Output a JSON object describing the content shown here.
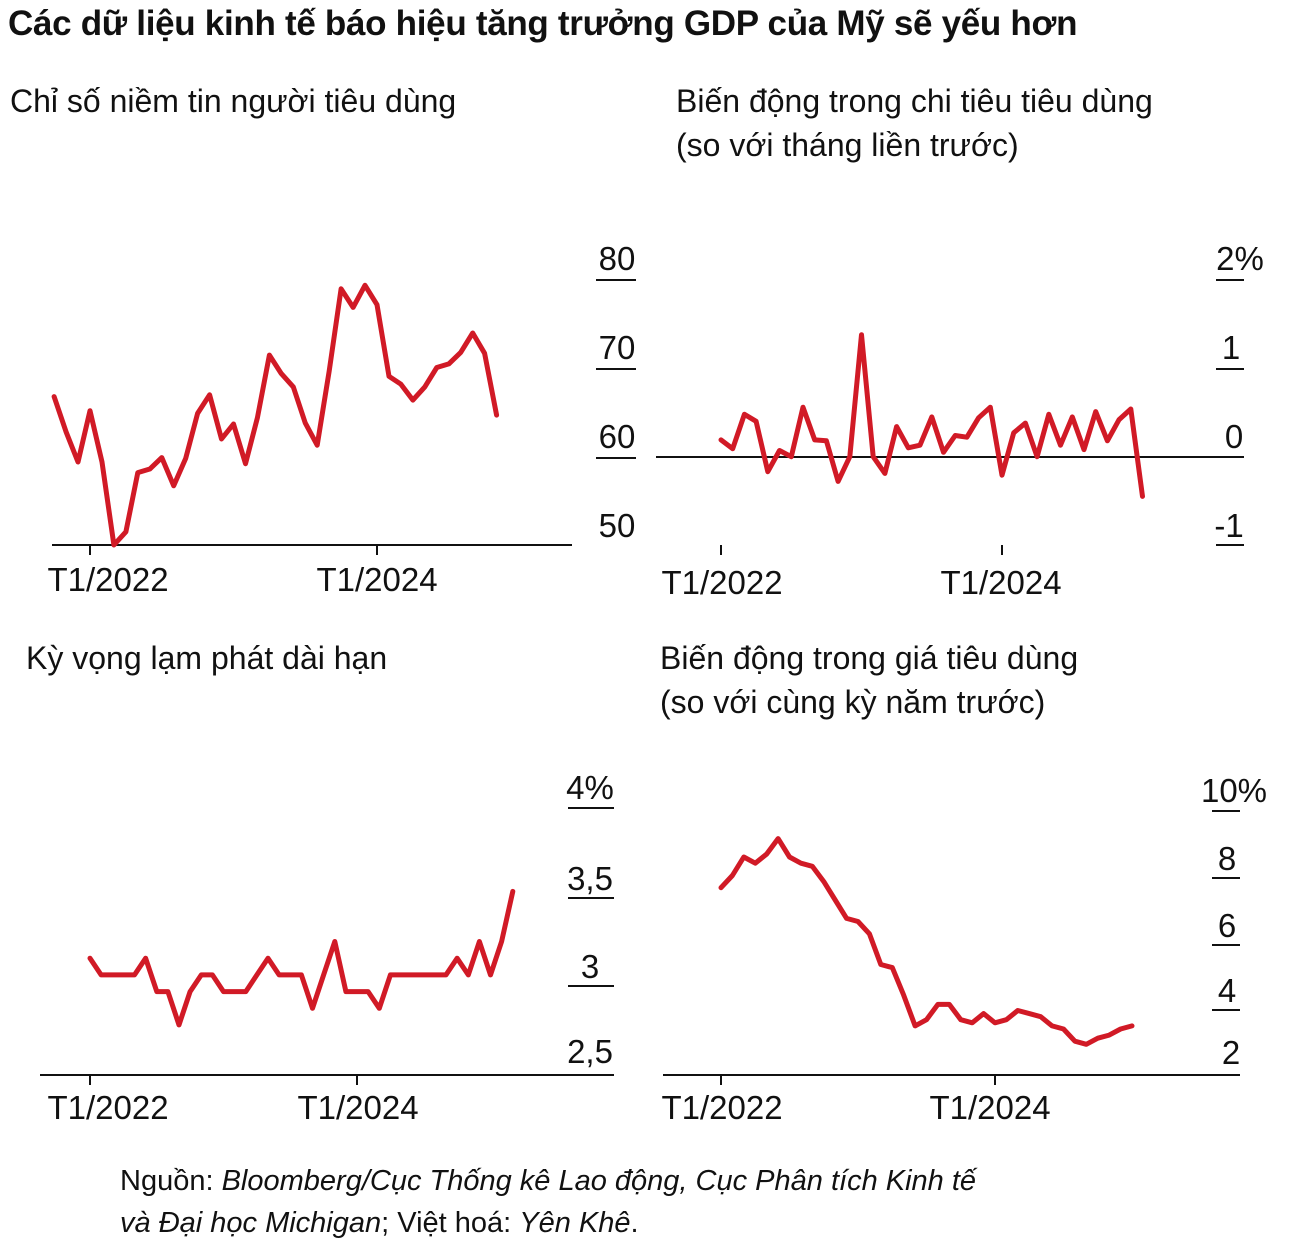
{
  "title": "Các dữ liệu kinh tế báo hiệu tăng trưởng GDP của Mỹ sẽ yếu hơn",
  "accent_color": "#d11a26",
  "charts": [
    {
      "title_lines": [
        "Chỉ số niềm tin người tiêu dùng"
      ],
      "chart_data": {
        "type": "line",
        "title": "Chỉ số niềm tin người tiêu dùng",
        "x_tick_labels": [
          "T1/2022",
          "T1/2024"
        ],
        "x_start_index_offset": -3,
        "y_tick_labels": [
          "80",
          "70",
          "60",
          "50"
        ],
        "y_ticks": [
          80,
          70,
          60,
          50
        ],
        "ylim": [
          50,
          80
        ],
        "baseline": 50,
        "values": [
          66.8,
          62.8,
          59.4,
          65.2,
          59.4,
          50.0,
          51.5,
          58.2,
          58.6,
          59.9,
          56.7,
          59.8,
          64.9,
          67.0,
          62.0,
          63.7,
          59.2,
          64.4,
          71.5,
          69.4,
          67.9,
          63.8,
          61.3,
          69.7,
          79.0,
          76.9,
          79.4,
          77.2,
          69.1,
          68.2,
          66.4,
          67.9,
          70.1,
          70.5,
          71.8,
          74.0,
          71.7,
          64.7
        ]
      }
    },
    {
      "title_lines": [
        "Biến động trong chi tiêu tiêu dùng",
        "(so với tháng liền trước)"
      ],
      "chart_data": {
        "type": "line",
        "title": "Biến động trong chi tiêu tiêu dùng (so với tháng liền trước)",
        "x_tick_labels": [
          "T1/2022",
          "T1/2024"
        ],
        "x_start_index_offset": 0,
        "y_tick_labels": [
          "2%",
          "1",
          "0",
          "-1"
        ],
        "y_ticks": [
          2,
          1,
          0,
          -1
        ],
        "ylim": [
          -1,
          2
        ],
        "baseline": 0,
        "values": [
          0.19,
          0.09,
          0.48,
          0.4,
          -0.17,
          0.07,
          0.0,
          0.56,
          0.19,
          0.18,
          -0.28,
          0.0,
          1.38,
          0.0,
          -0.19,
          0.34,
          0.1,
          0.13,
          0.45,
          0.05,
          0.24,
          0.22,
          0.44,
          0.56,
          -0.21,
          0.27,
          0.38,
          0.0,
          0.48,
          0.13,
          0.45,
          0.08,
          0.51,
          0.18,
          0.42,
          0.54,
          -0.45
        ]
      }
    },
    {
      "title_lines": [
        "Kỳ vọng lạm phát dài hạn"
      ],
      "chart_data": {
        "type": "line",
        "title": "Kỳ vọng lạm phát dài hạn",
        "x_tick_labels": [
          "T1/2022",
          "T1/2024"
        ],
        "x_start_index_offset": 0,
        "y_tick_labels": [
          "4%",
          "3,5",
          "3",
          "2,5"
        ],
        "y_ticks": [
          4,
          3.5,
          3,
          2.5
        ],
        "ylim": [
          2.4,
          4
        ],
        "baseline": 2.4,
        "values": [
          3.1,
          3.0,
          3.0,
          3.0,
          3.0,
          3.1,
          2.9,
          2.9,
          2.7,
          2.9,
          3.0,
          3.0,
          2.9,
          2.9,
          2.9,
          3.0,
          3.1,
          3.0,
          3.0,
          3.0,
          2.8,
          3.0,
          3.2,
          2.9,
          2.9,
          2.9,
          2.8,
          3.0,
          3.0,
          3.0,
          3.0,
          3.0,
          3.0,
          3.1,
          3.0,
          3.2,
          3.0,
          3.2,
          3.5
        ]
      }
    },
    {
      "title_lines": [
        "Biến động trong giá tiêu dùng",
        "(so với cùng kỳ năm trước)"
      ],
      "chart_data": {
        "type": "line",
        "title": "Biến động trong giá tiêu dùng (so với cùng kỳ năm trước)",
        "x_tick_labels": [
          "T1/2022",
          "T1/2024"
        ],
        "x_start_index_offset": 0,
        "y_tick_labels": [
          "10%",
          "8",
          "6",
          "4",
          "2"
        ],
        "y_ticks": [
          10,
          8,
          6,
          4,
          2
        ],
        "ylim": [
          1.4,
          10
        ],
        "baseline": 1.4,
        "values": [
          7.5,
          7.9,
          8.5,
          8.3,
          8.6,
          9.1,
          8.5,
          8.3,
          8.2,
          7.7,
          7.1,
          6.5,
          6.4,
          6.0,
          5.0,
          4.9,
          4.0,
          3.0,
          3.2,
          3.7,
          3.7,
          3.2,
          3.1,
          3.4,
          3.1,
          3.2,
          3.5,
          3.4,
          3.3,
          3.0,
          2.9,
          2.5,
          2.4,
          2.6,
          2.7,
          2.9,
          3.0
        ]
      }
    }
  ],
  "source": {
    "line1_prefix": "Nguồn: ",
    "line1_italic": "Bloomberg/Cục Thống kê Lao động, Cục Phân tích Kinh tế",
    "line2_italic_a": "và Đại học Michigan",
    "line2_mid": "; Việt hoá: ",
    "line2_italic_b": "Yên Khê",
    "line2_end": "."
  }
}
